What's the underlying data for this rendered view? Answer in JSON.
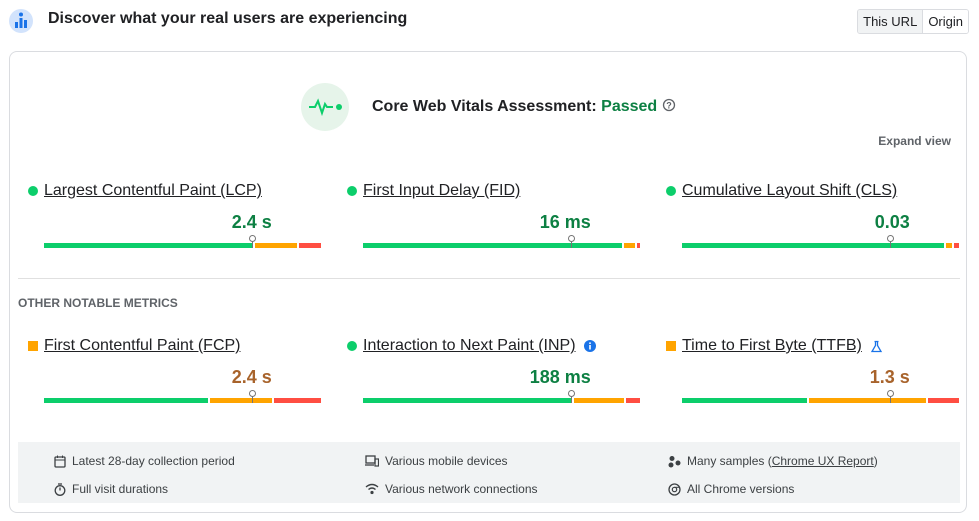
{
  "header": {
    "title": "Discover what your real users are experiencing",
    "tabs": [
      "This URL",
      "Origin"
    ],
    "active_tab": 0
  },
  "assessment": {
    "label": "Core Web Vitals Assessment:",
    "status": "Passed",
    "status_color": "#0d8043",
    "expand": "Expand view"
  },
  "core_metrics": [
    {
      "name": "Largest Contentful Paint (LCP)",
      "value": "2.4 s",
      "icon": "circle",
      "color": "#0cce6b",
      "value_color": "#0d8043",
      "distribution": [
        75,
        15,
        8
      ]
    },
    {
      "name": "First Input Delay (FID)",
      "value": "16 ms",
      "icon": "circle",
      "color": "#0cce6b",
      "value_color": "#0d8043",
      "distribution": [
        95,
        4,
        1
      ]
    },
    {
      "name": "Cumulative Layout Shift (CLS)",
      "value": "0.03",
      "icon": "circle",
      "color": "#0cce6b",
      "value_color": "#0d8043",
      "distribution": [
        96,
        2,
        2
      ]
    }
  ],
  "other_heading": "OTHER NOTABLE METRICS",
  "other_metrics": [
    {
      "name": "First Contentful Paint (FCP)",
      "value": "2.4 s",
      "icon": "square",
      "color": "#ffa400",
      "value_color": "#a8632b",
      "distribution": [
        59,
        22,
        17
      ]
    },
    {
      "name": "Interaction to Next Paint (INP)",
      "value": "188 ms",
      "icon": "circle",
      "color": "#0cce6b",
      "value_color": "#0d8043",
      "badge": "info",
      "distribution": [
        75,
        18,
        5
      ]
    },
    {
      "name": "Time to First Byte (TTFB)",
      "value": "1.3 s",
      "icon": "square",
      "color": "#ffa400",
      "value_color": "#a8632b",
      "badge": "experimental",
      "distribution": [
        45,
        42,
        11
      ]
    }
  ],
  "footer": [
    {
      "text": "Latest 28-day collection period"
    },
    {
      "text": "Various mobile devices"
    },
    {
      "text": "Many samples (",
      "link": "Chrome UX Report",
      "suffix": ")"
    },
    {
      "text": "Full visit durations"
    },
    {
      "text": "Various network connections"
    },
    {
      "text": "All Chrome versions"
    }
  ],
  "distribution_colors": [
    "#0cce6b",
    "#ffa400",
    "#ff4e42"
  ]
}
